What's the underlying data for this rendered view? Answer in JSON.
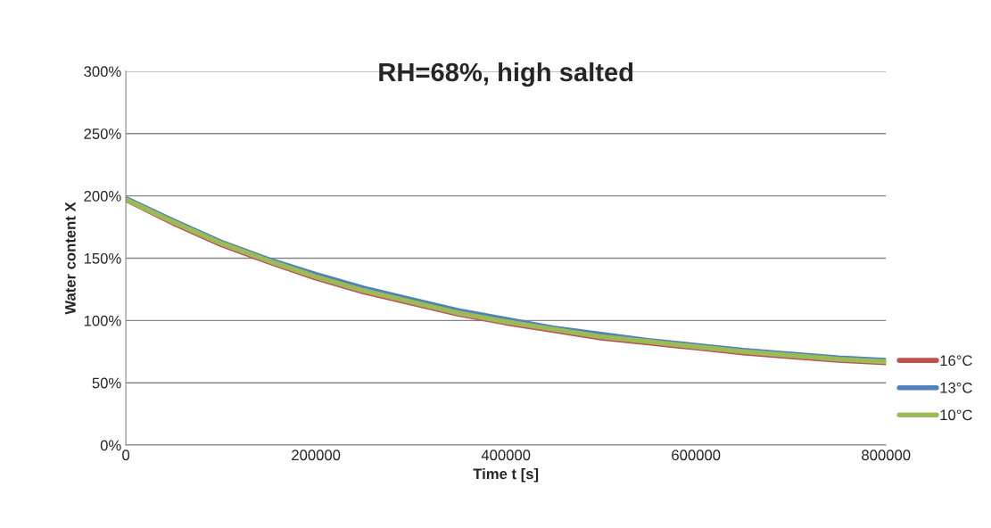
{
  "chart_data": {
    "type": "line",
    "title": "RH=68%, high salted",
    "xlabel": "Time t [s]",
    "ylabel": "Water content X",
    "x": [
      0,
      50000,
      100000,
      150000,
      200000,
      250000,
      300000,
      350000,
      400000,
      450000,
      500000,
      550000,
      600000,
      650000,
      700000,
      750000,
      800000
    ],
    "series": [
      {
        "name": "16°C",
        "color": "#c0504d",
        "values": [
          197,
          178,
          161,
          147,
          134,
          123,
          114,
          105,
          98,
          92,
          86,
          82,
          78,
          74,
          71,
          68,
          66
        ]
      },
      {
        "name": "13°C",
        "color": "#4f81bd",
        "values": [
          198,
          180,
          163,
          149,
          137,
          126,
          117,
          108,
          101,
          94,
          89,
          84,
          80,
          76,
          73,
          70,
          68
        ]
      },
      {
        "name": "10°C",
        "color": "#9bbb59",
        "values": [
          197,
          179,
          162,
          148,
          135,
          124,
          115,
          106,
          99,
          93,
          87,
          83,
          79,
          75,
          72,
          69,
          67
        ]
      }
    ],
    "xlim": [
      0,
      800000
    ],
    "xticks": [
      0,
      200000,
      400000,
      600000,
      800000
    ],
    "ylim": [
      0,
      300
    ],
    "yticks": [
      {
        "value": 0,
        "label": "0%"
      },
      {
        "value": 50,
        "label": "50%"
      },
      {
        "value": 100,
        "label": "100%"
      },
      {
        "value": 150,
        "label": "150%"
      },
      {
        "value": 200,
        "label": "200%"
      },
      {
        "value": 250,
        "label": "250%"
      },
      {
        "value": 300,
        "label": "300%"
      }
    ],
    "grid": "y",
    "legend": "right",
    "marker": "none",
    "line_style": "solid"
  }
}
